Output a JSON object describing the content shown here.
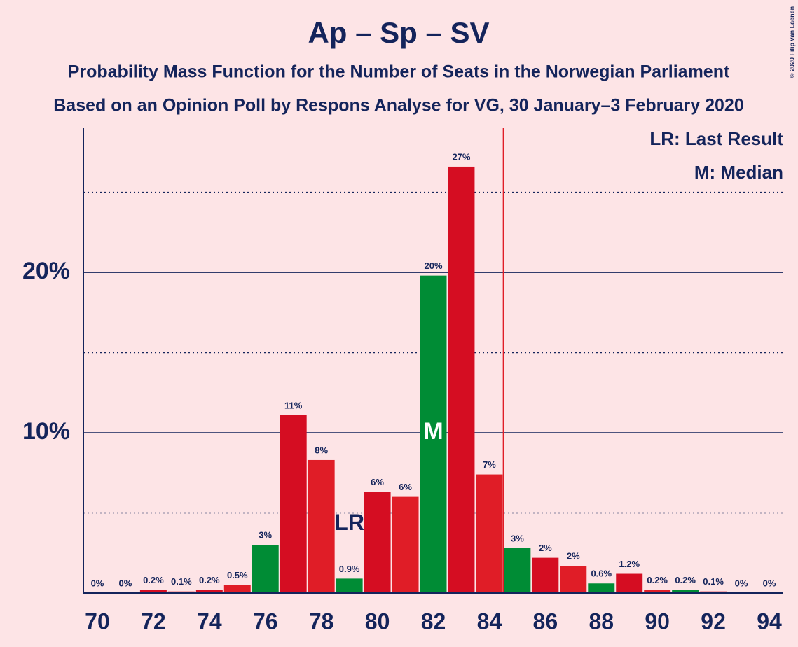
{
  "chart_data": {
    "type": "bar",
    "title": "Ap – Sp – SV",
    "subtitle": [
      "Probability Mass Function for the Number of Seats in the Norwegian Parliament",
      "Based on an Opinion Poll by Respons Analyse for VG, 30 January–3 February 2020"
    ],
    "copyright": "© 2020 Filip van Laenen",
    "legend": [
      "LR: Last Result",
      "M: Median"
    ],
    "x": [
      70,
      71,
      72,
      73,
      74,
      75,
      76,
      77,
      78,
      79,
      80,
      81,
      82,
      83,
      84,
      85,
      86,
      87,
      88,
      89,
      90,
      91,
      92,
      93,
      94
    ],
    "values": [
      0,
      0,
      0.2,
      0.1,
      0.2,
      0.5,
      3.0,
      11.1,
      8.3,
      0.9,
      6.3,
      6.0,
      19.8,
      26.6,
      7.4,
      2.8,
      2.2,
      1.7,
      0.6,
      1.2,
      0.2,
      0.2,
      0.1,
      0,
      0
    ],
    "value_labels": [
      "0%",
      "0%",
      "0.2%",
      "0.1%",
      "0.2%",
      "0.5%",
      "3%",
      "11%",
      "8%",
      "0.9%",
      "6%",
      "6%",
      "20%",
      "27%",
      "7%",
      "3%",
      "2%",
      "2%",
      "0.6%",
      "1.2%",
      "0.2%",
      "0.2%",
      "0.1%",
      "0%",
      "0%"
    ],
    "colors": [
      "#d50d22",
      "#e01d27",
      "#d50d22",
      "#e01d27",
      "#d50d22",
      "#e01d27",
      "#008c35",
      "#d50d22",
      "#e01d27",
      "#008c35",
      "#d50d22",
      "#e01d27",
      "#008c35",
      "#d50d22",
      "#e01d27",
      "#008c35",
      "#d50d22",
      "#e01d27",
      "#008c35",
      "#d50d22",
      "#e01d27",
      "#008c35",
      "#d50d22",
      "#e01d27",
      "#d50d22"
    ],
    "xlim": [
      69.5,
      94.5
    ],
    "xticks": [
      70,
      72,
      74,
      76,
      78,
      80,
      82,
      84,
      86,
      88,
      90,
      92,
      94
    ],
    "ylim": [
      0,
      29
    ],
    "yticks": [
      {
        "value": 10,
        "label": "10%"
      },
      {
        "value": 20,
        "label": "20%"
      }
    ],
    "minor_gridlines": [
      5,
      15,
      25
    ],
    "majority_line": 84.5,
    "last_result": {
      "x": 79,
      "label": "LR"
    },
    "median": {
      "x": 82,
      "label": "M"
    }
  }
}
